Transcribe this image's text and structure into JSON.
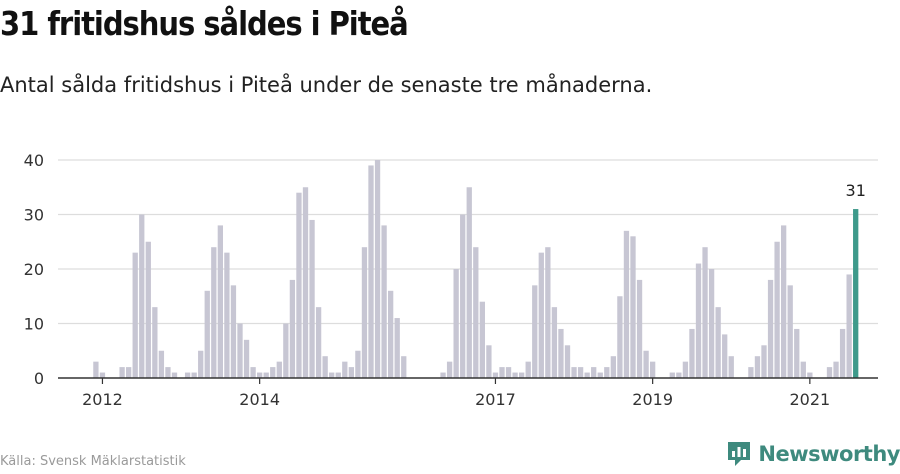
{
  "title": "31 fritidshus såldes i Piteå",
  "subtitle": "Antal sålda fritidshus i Piteå under de senaste tre månaderna.",
  "source": "Källa: Svensk Mäklarstatistik",
  "brand": "Newsworthy",
  "colors": {
    "bar": "#c7c6d3",
    "highlight": "#3e9a8b",
    "grid": "#dddddd",
    "brand": "#3e8a7e"
  },
  "chart_data": {
    "type": "bar",
    "title": "31 fritidshus såldes i Piteå",
    "subtitle": "Antal sålda fritidshus i Piteå under de senaste tre månaderna.",
    "xlabel": "",
    "ylabel": "",
    "ylim": [
      0,
      40
    ],
    "yticks": [
      0,
      10,
      20,
      30,
      40
    ],
    "xticks": [
      "2012",
      "2014",
      "2017",
      "2019",
      "2021"
    ],
    "grid": true,
    "highlight_label": "31",
    "values": [
      null,
      null,
      null,
      null,
      null,
      3,
      1,
      null,
      null,
      2,
      2,
      23,
      30,
      25,
      13,
      5,
      2,
      1,
      null,
      1,
      1,
      5,
      16,
      24,
      28,
      23,
      17,
      10,
      7,
      2,
      1,
      1,
      2,
      3,
      10,
      18,
      34,
      35,
      29,
      13,
      4,
      1,
      1,
      3,
      2,
      5,
      24,
      39,
      40,
      28,
      16,
      11,
      4,
      null,
      null,
      null,
      null,
      null,
      1,
      3,
      20,
      30,
      35,
      24,
      14,
      6,
      1,
      2,
      2,
      1,
      1,
      3,
      17,
      23,
      24,
      13,
      9,
      6,
      2,
      2,
      1,
      2,
      1,
      2,
      4,
      15,
      27,
      26,
      18,
      5,
      3,
      null,
      null,
      1,
      1,
      3,
      9,
      21,
      24,
      20,
      13,
      8,
      4,
      null,
      null,
      2,
      4,
      6,
      18,
      25,
      28,
      17,
      9,
      3,
      1,
      null,
      null,
      2,
      3,
      9,
      19,
      31
    ]
  }
}
